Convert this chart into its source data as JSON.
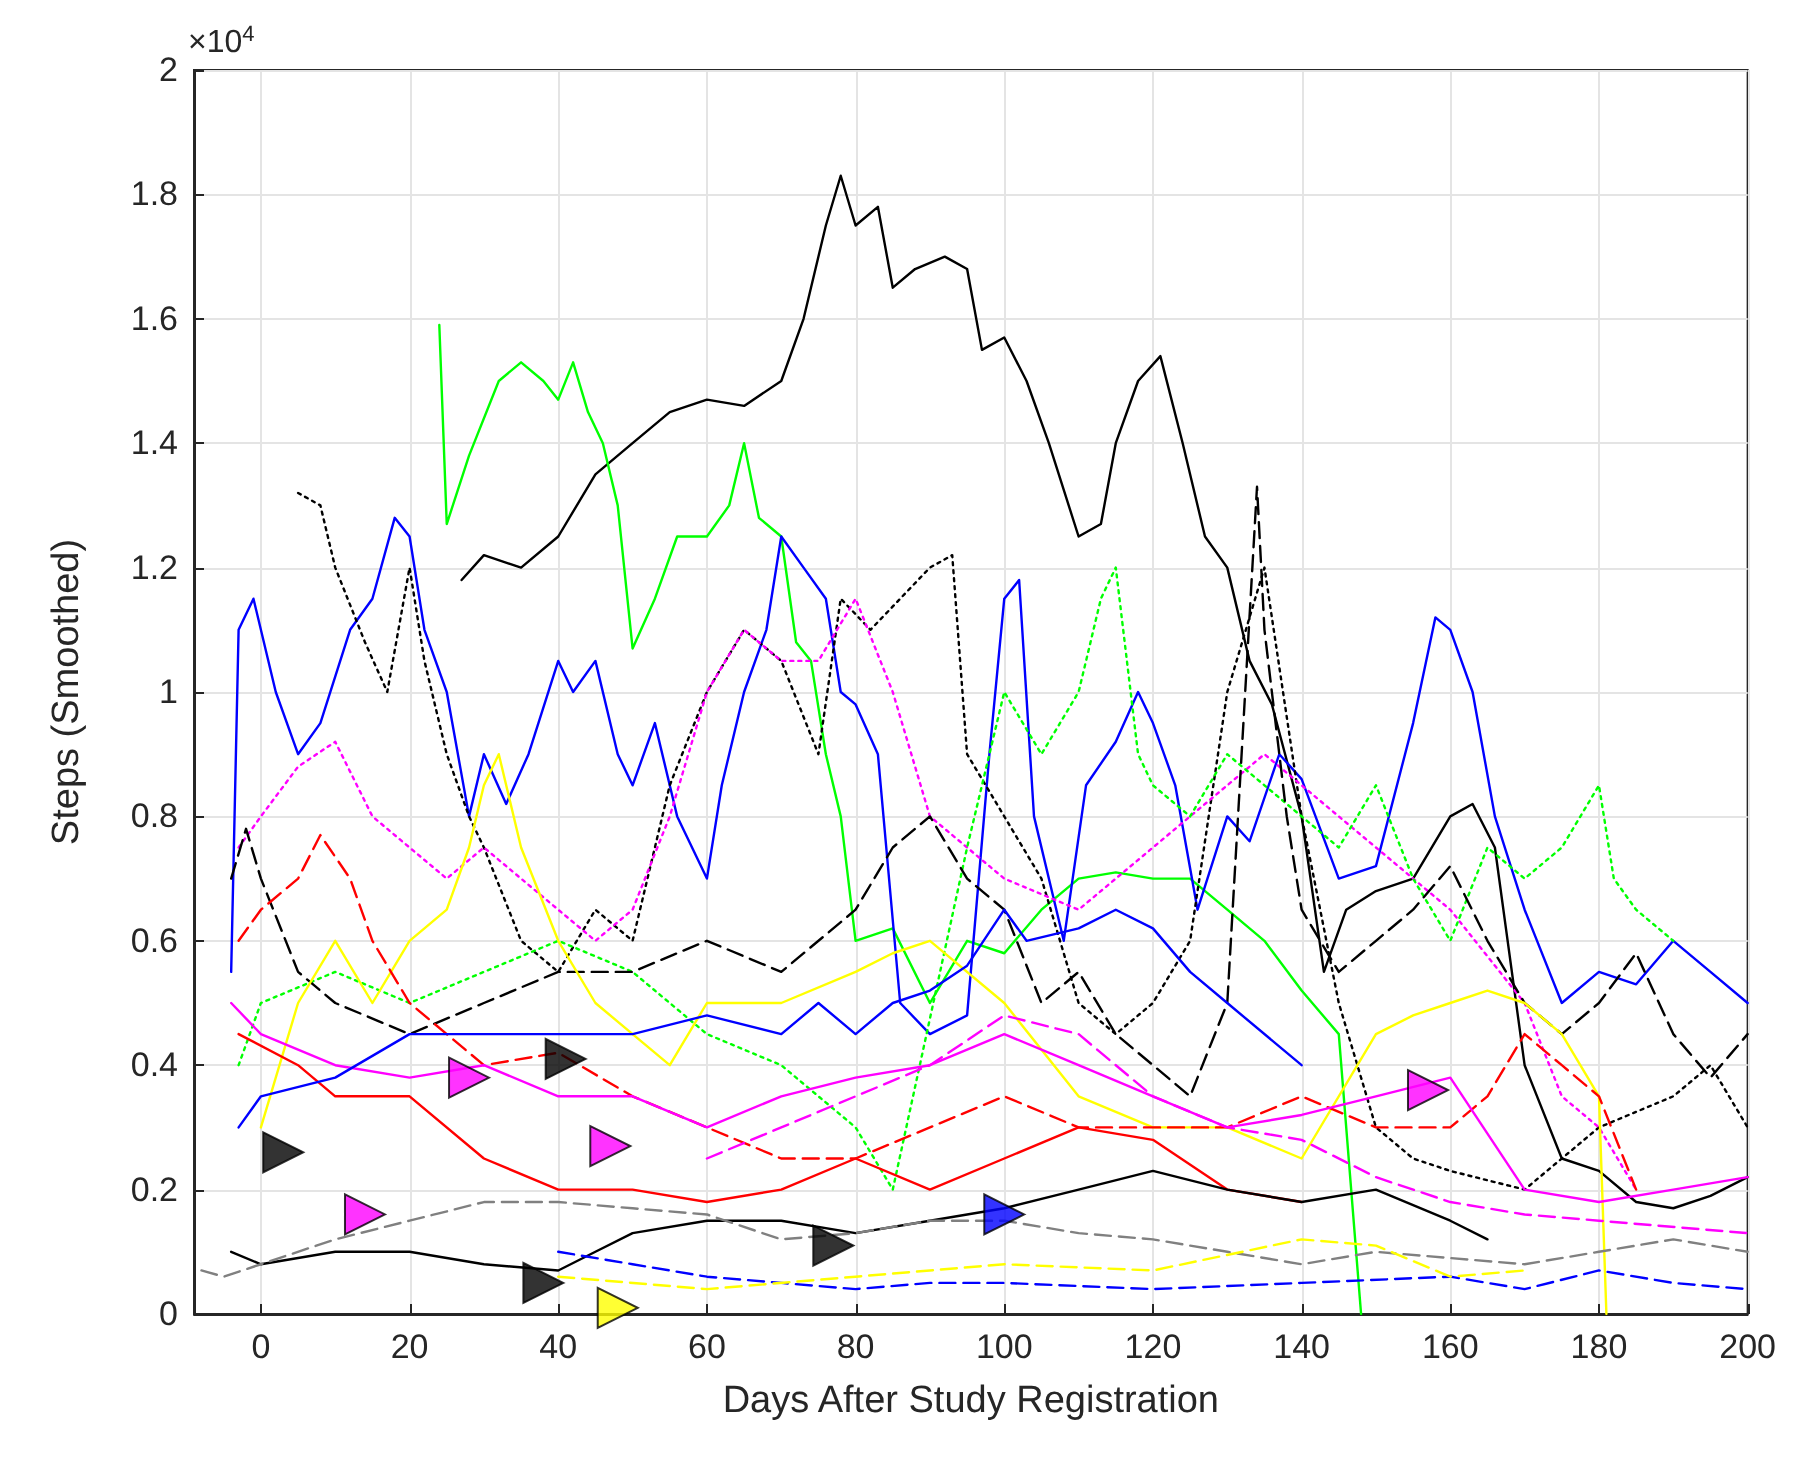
{
  "chart_data": {
    "type": "line",
    "xlabel": "Days After Study Registration",
    "ylabel": "Steps (Smoothed)",
    "annotations": [
      "×10$^{4}$"
    ],
    "xlim": [
      -9,
      200
    ],
    "xticks": [
      0,
      20,
      40,
      60,
      80,
      100,
      120,
      140,
      160,
      180,
      200
    ],
    "ylim": [
      0,
      2
    ],
    "yticks": [
      0,
      0.2,
      0.4,
      0.6,
      0.8,
      1,
      1.2,
      1.4,
      1.6,
      1.8,
      2
    ],
    "grid": true,
    "marker": "none",
    "line_style": "solid",
    "series": [
      {
        "color": "#000000",
        "x": [
          27,
          30,
          35,
          40,
          45,
          50,
          55,
          60,
          65,
          70,
          73,
          76,
          78,
          80,
          83,
          85,
          88,
          92,
          95,
          97,
          100,
          103,
          106,
          110,
          113,
          115,
          118,
          121,
          124,
          127,
          130,
          133,
          136,
          140,
          143,
          146,
          150,
          155,
          160,
          163,
          166,
          170,
          175,
          180,
          185,
          190,
          195,
          200
        ],
        "values": [
          1.18,
          1.22,
          1.2,
          1.25,
          1.35,
          1.4,
          1.45,
          1.47,
          1.46,
          1.5,
          1.6,
          1.75,
          1.83,
          1.75,
          1.78,
          1.65,
          1.68,
          1.7,
          1.68,
          1.55,
          1.57,
          1.5,
          1.4,
          1.25,
          1.27,
          1.4,
          1.5,
          1.54,
          1.4,
          1.25,
          1.2,
          1.05,
          0.98,
          0.8,
          0.55,
          0.65,
          0.68,
          0.7,
          0.8,
          0.82,
          0.75,
          0.4,
          0.25,
          0.23,
          0.18,
          0.17,
          0.19,
          0.22
        ]
      },
      {
        "color": "#00ff00",
        "x": [
          24,
          25,
          28,
          32,
          35,
          38,
          40,
          42,
          44,
          46,
          48,
          50,
          53,
          56,
          60,
          63,
          65,
          67,
          70,
          72,
          74,
          76,
          78,
          80,
          85,
          90,
          95,
          100,
          105,
          110,
          115,
          120,
          125,
          130,
          135,
          140,
          145,
          148
        ],
        "values": [
          1.59,
          1.27,
          1.38,
          1.5,
          1.53,
          1.5,
          1.47,
          1.53,
          1.45,
          1.4,
          1.3,
          1.07,
          1.15,
          1.25,
          1.25,
          1.3,
          1.4,
          1.28,
          1.25,
          1.08,
          1.05,
          0.9,
          0.8,
          0.6,
          0.62,
          0.5,
          0.6,
          0.58,
          0.65,
          0.7,
          0.71,
          0.7,
          0.7,
          0.65,
          0.6,
          0.52,
          0.45,
          0
        ]
      },
      {
        "color": "#0000ff",
        "x": [
          -4,
          -3,
          -1,
          2,
          5,
          8,
          12,
          15,
          18,
          20,
          22,
          25,
          28,
          30,
          33,
          36,
          40,
          42,
          45,
          48,
          50,
          53,
          56,
          60,
          62,
          65,
          68,
          70,
          73,
          76,
          78,
          80,
          83,
          86,
          90,
          95,
          98,
          100,
          102,
          104,
          108,
          111,
          115,
          118,
          120,
          123,
          126,
          130,
          133,
          137,
          140,
          145,
          150,
          155,
          158,
          160,
          163,
          166,
          170,
          175,
          180,
          185,
          190,
          195,
          200
        ],
        "values": [
          0.55,
          1.1,
          1.15,
          1,
          0.9,
          0.95,
          1.1,
          1.15,
          1.28,
          1.25,
          1.1,
          1,
          0.8,
          0.9,
          0.82,
          0.9,
          1.05,
          1,
          1.05,
          0.9,
          0.85,
          0.95,
          0.8,
          0.7,
          0.85,
          1,
          1.1,
          1.25,
          1.2,
          1.15,
          1,
          0.98,
          0.9,
          0.5,
          0.45,
          0.48,
          0.9,
          1.15,
          1.18,
          0.8,
          0.6,
          0.85,
          0.92,
          1,
          0.95,
          0.85,
          0.65,
          0.8,
          0.76,
          0.9,
          0.86,
          0.7,
          0.72,
          0.95,
          1.12,
          1.1,
          1,
          0.8,
          0.65,
          0.5,
          0.55,
          0.53,
          0.6,
          0.55,
          0.5
        ]
      },
      {
        "color": "#000000",
        "line_style": "dotted",
        "x": [
          5,
          8,
          10,
          14,
          17,
          20,
          22,
          25,
          28,
          30,
          35,
          40,
          45,
          50,
          55,
          60,
          65,
          70,
          75,
          78,
          82,
          86,
          90,
          93,
          95,
          100,
          105,
          110,
          115,
          120,
          125,
          130,
          135,
          140,
          145,
          150,
          155,
          160,
          170,
          180,
          190,
          195,
          200
        ],
        "values": [
          1.32,
          1.3,
          1.2,
          1.08,
          1,
          1.2,
          1.05,
          0.9,
          0.8,
          0.75,
          0.6,
          0.55,
          0.65,
          0.6,
          0.85,
          1,
          1.1,
          1.05,
          0.9,
          1.15,
          1.1,
          1.15,
          1.2,
          1.22,
          0.9,
          0.8,
          0.7,
          0.5,
          0.45,
          0.5,
          0.6,
          1,
          1.2,
          0.8,
          0.5,
          0.3,
          0.25,
          0.23,
          0.2,
          0.3,
          0.35,
          0.4,
          0.3
        ]
      },
      {
        "color": "#ff00ff",
        "line_style": "dotted",
        "x": [
          -3,
          0,
          5,
          10,
          15,
          20,
          25,
          30,
          35,
          40,
          45,
          50,
          55,
          60,
          65,
          70,
          75,
          80,
          85,
          90,
          100,
          110,
          120,
          130,
          135,
          140,
          150,
          160,
          170,
          175,
          180,
          185
        ],
        "values": [
          0.75,
          0.8,
          0.88,
          0.92,
          0.8,
          0.75,
          0.7,
          0.75,
          0.7,
          0.65,
          0.6,
          0.65,
          0.8,
          1,
          1.1,
          1.05,
          1.05,
          1.15,
          1,
          0.8,
          0.7,
          0.65,
          0.75,
          0.85,
          0.9,
          0.85,
          0.75,
          0.65,
          0.5,
          0.35,
          0.3,
          0.2
        ]
      },
      {
        "color": "#00ff00",
        "line_style": "dotted",
        "x": [
          -3,
          0,
          10,
          20,
          30,
          40,
          50,
          60,
          70,
          80,
          85,
          95,
          100,
          105,
          110,
          113,
          115,
          118,
          120,
          125,
          130,
          135,
          140,
          145,
          150,
          155,
          160,
          165,
          170,
          175,
          180,
          182,
          185,
          190
        ],
        "values": [
          0.4,
          0.5,
          0.55,
          0.5,
          0.55,
          0.6,
          0.55,
          0.45,
          0.4,
          0.3,
          0.2,
          0.75,
          1,
          0.9,
          1,
          1.15,
          1.2,
          0.9,
          0.85,
          0.8,
          0.9,
          0.85,
          0.8,
          0.75,
          0.85,
          0.7,
          0.6,
          0.75,
          0.7,
          0.75,
          0.85,
          0.7,
          0.65,
          0.6
        ]
      },
      {
        "color": "#000000",
        "line_style": "dashed",
        "x": [
          -4,
          -2,
          0,
          5,
          10,
          20,
          30,
          40,
          50,
          60,
          70,
          80,
          85,
          90,
          95,
          100,
          105,
          110,
          115,
          120,
          125,
          130,
          134,
          135,
          138,
          140,
          145,
          150,
          155,
          160,
          165,
          170,
          175,
          180,
          185,
          190,
          195,
          200
        ],
        "values": [
          0.7,
          0.78,
          0.7,
          0.55,
          0.5,
          0.45,
          0.5,
          0.55,
          0.55,
          0.6,
          0.55,
          0.65,
          0.75,
          0.8,
          0.7,
          0.65,
          0.5,
          0.55,
          0.45,
          0.4,
          0.35,
          0.5,
          1.33,
          1.1,
          0.8,
          0.65,
          0.55,
          0.6,
          0.65,
          0.72,
          0.6,
          0.5,
          0.45,
          0.5,
          0.58,
          0.45,
          0.38,
          0.45
        ]
      },
      {
        "color": "#ffff00",
        "x": [
          0,
          5,
          10,
          15,
          20,
          25,
          28,
          30,
          32,
          35,
          40,
          45,
          50,
          55,
          60,
          70,
          80,
          85,
          90,
          100,
          110,
          120,
          130,
          140,
          150,
          155,
          160,
          165,
          170,
          175,
          180,
          181
        ],
        "values": [
          0.3,
          0.5,
          0.6,
          0.5,
          0.6,
          0.65,
          0.75,
          0.85,
          0.9,
          0.75,
          0.6,
          0.5,
          0.45,
          0.4,
          0.5,
          0.5,
          0.55,
          0.58,
          0.6,
          0.5,
          0.35,
          0.3,
          0.3,
          0.25,
          0.45,
          0.48,
          0.5,
          0.52,
          0.5,
          0.45,
          0.35,
          0
        ]
      },
      {
        "color": "#ff0000",
        "line_style": "dashed",
        "x": [
          -3,
          0,
          5,
          8,
          12,
          15,
          20,
          25,
          30,
          40,
          50,
          60,
          70,
          80,
          90,
          100,
          110,
          120,
          130,
          140,
          150,
          160,
          165,
          170,
          175,
          180,
          185
        ],
        "values": [
          0.6,
          0.65,
          0.7,
          0.77,
          0.7,
          0.6,
          0.5,
          0.45,
          0.4,
          0.42,
          0.35,
          0.3,
          0.25,
          0.25,
          0.3,
          0.35,
          0.3,
          0.3,
          0.3,
          0.35,
          0.3,
          0.3,
          0.35,
          0.45,
          0.4,
          0.35,
          0.2
        ]
      },
      {
        "color": "#ff00ff",
        "x": [
          -4,
          0,
          10,
          20,
          30,
          40,
          50,
          60,
          70,
          80,
          90,
          100,
          110,
          120,
          130,
          140,
          150,
          160,
          170,
          180,
          190,
          200
        ],
        "values": [
          0.5,
          0.45,
          0.4,
          0.38,
          0.4,
          0.35,
          0.35,
          0.3,
          0.35,
          0.38,
          0.4,
          0.45,
          0.4,
          0.35,
          0.3,
          0.32,
          0.35,
          0.38,
          0.2,
          0.18,
          0.2,
          0.22
        ]
      },
      {
        "color": "#ff0000",
        "x": [
          -3,
          5,
          10,
          20,
          30,
          40,
          50,
          60,
          70,
          80,
          90,
          100,
          110,
          120,
          130,
          140
        ],
        "values": [
          0.45,
          0.4,
          0.35,
          0.35,
          0.25,
          0.2,
          0.2,
          0.18,
          0.2,
          0.25,
          0.2,
          0.25,
          0.3,
          0.28,
          0.2,
          0.18
        ]
      },
      {
        "color": "#000000",
        "x": [
          -4,
          0,
          10,
          20,
          30,
          40,
          45,
          50,
          60,
          70,
          80,
          90,
          100,
          110,
          120,
          130,
          140,
          150,
          160,
          165
        ],
        "values": [
          0.1,
          0.08,
          0.1,
          0.1,
          0.08,
          0.07,
          0.1,
          0.13,
          0.15,
          0.15,
          0.13,
          0.15,
          0.17,
          0.2,
          0.23,
          0.2,
          0.18,
          0.2,
          0.15,
          0.12
        ]
      },
      {
        "color": "#808080",
        "line_style": "dashed",
        "x": [
          -8,
          -5,
          0,
          10,
          20,
          30,
          40,
          50,
          60,
          70,
          80,
          90,
          100,
          110,
          120,
          130,
          140,
          150,
          160,
          170,
          180,
          190,
          200
        ],
        "values": [
          0.07,
          0.06,
          0.08,
          0.12,
          0.15,
          0.18,
          0.18,
          0.17,
          0.16,
          0.12,
          0.13,
          0.15,
          0.15,
          0.13,
          0.12,
          0.1,
          0.08,
          0.1,
          0.09,
          0.08,
          0.1,
          0.12,
          0.1
        ]
      },
      {
        "color": "#0000ff",
        "line_style": "dashed",
        "x": [
          40,
          50,
          60,
          70,
          80,
          90,
          100,
          120,
          140,
          160,
          170,
          180,
          190,
          200
        ],
        "values": [
          0.1,
          0.08,
          0.06,
          0.05,
          0.04,
          0.05,
          0.05,
          0.04,
          0.05,
          0.06,
          0.04,
          0.07,
          0.05,
          0.04
        ]
      },
      {
        "color": "#ffff00",
        "line_style": "dashed",
        "x": [
          40,
          60,
          80,
          100,
          120,
          140,
          150,
          160,
          170
        ],
        "values": [
          0.06,
          0.04,
          0.06,
          0.08,
          0.07,
          0.12,
          0.11,
          0.06,
          0.07
        ]
      },
      {
        "color": "#ff00ff",
        "line_style": "dashed",
        "x": [
          60,
          70,
          80,
          90,
          100,
          110,
          120,
          130,
          140,
          150,
          160,
          170,
          180,
          200
        ],
        "values": [
          0.25,
          0.3,
          0.35,
          0.4,
          0.48,
          0.45,
          0.35,
          0.3,
          0.28,
          0.22,
          0.18,
          0.16,
          0.15,
          0.13
        ]
      },
      {
        "color": "#0000ff",
        "x": [
          -3,
          0,
          10,
          20,
          30,
          50,
          60,
          70,
          75,
          80,
          85,
          90,
          95,
          100,
          103,
          110,
          115,
          120,
          125,
          130,
          140
        ],
        "values": [
          0.3,
          0.35,
          0.38,
          0.45,
          0.45,
          0.45,
          0.48,
          0.45,
          0.5,
          0.45,
          0.5,
          0.52,
          0.56,
          0.65,
          0.6,
          0.62,
          0.65,
          0.62,
          0.55,
          0.5,
          0.4
        ]
      },
      {
        "type": "scatter",
        "color": "#000000",
        "marker": "triangle",
        "x": [
          3,
          41,
          38,
          77
        ],
        "values": [
          0.26,
          0.41,
          0.05,
          0.11
        ]
      },
      {
        "type": "scatter",
        "color": "#ff00ff",
        "marker": "triangle",
        "x": [
          14,
          28,
          47,
          157
        ],
        "values": [
          0.16,
          0.38,
          0.27,
          0.36
        ]
      },
      {
        "type": "scatter",
        "color": "#ffff00",
        "marker": "triangle",
        "x": [
          48
        ],
        "values": [
          0.01
        ]
      },
      {
        "type": "scatter",
        "color": "#0000ff",
        "marker": "triangle",
        "x": [
          100
        ],
        "values": [
          0.16
        ]
      }
    ]
  }
}
